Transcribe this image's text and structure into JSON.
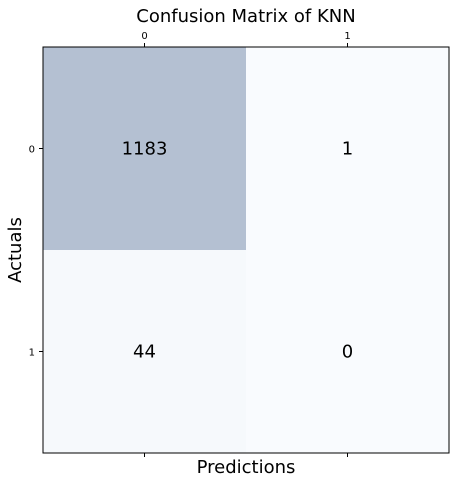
{
  "chart_data": {
    "type": "heatmap",
    "title": "Confusion Matrix of KNN",
    "xlabel": "Predictions",
    "ylabel": "Actuals",
    "x_categories": [
      "0",
      "1"
    ],
    "y_categories": [
      "0",
      "1"
    ],
    "values": [
      [
        1183,
        1
      ],
      [
        44,
        0
      ]
    ],
    "x_ticks_position": "top",
    "grid": false,
    "colors": {
      "high": "#b4c0d2",
      "low": "#f9fbfe",
      "frame": "#000000"
    }
  }
}
